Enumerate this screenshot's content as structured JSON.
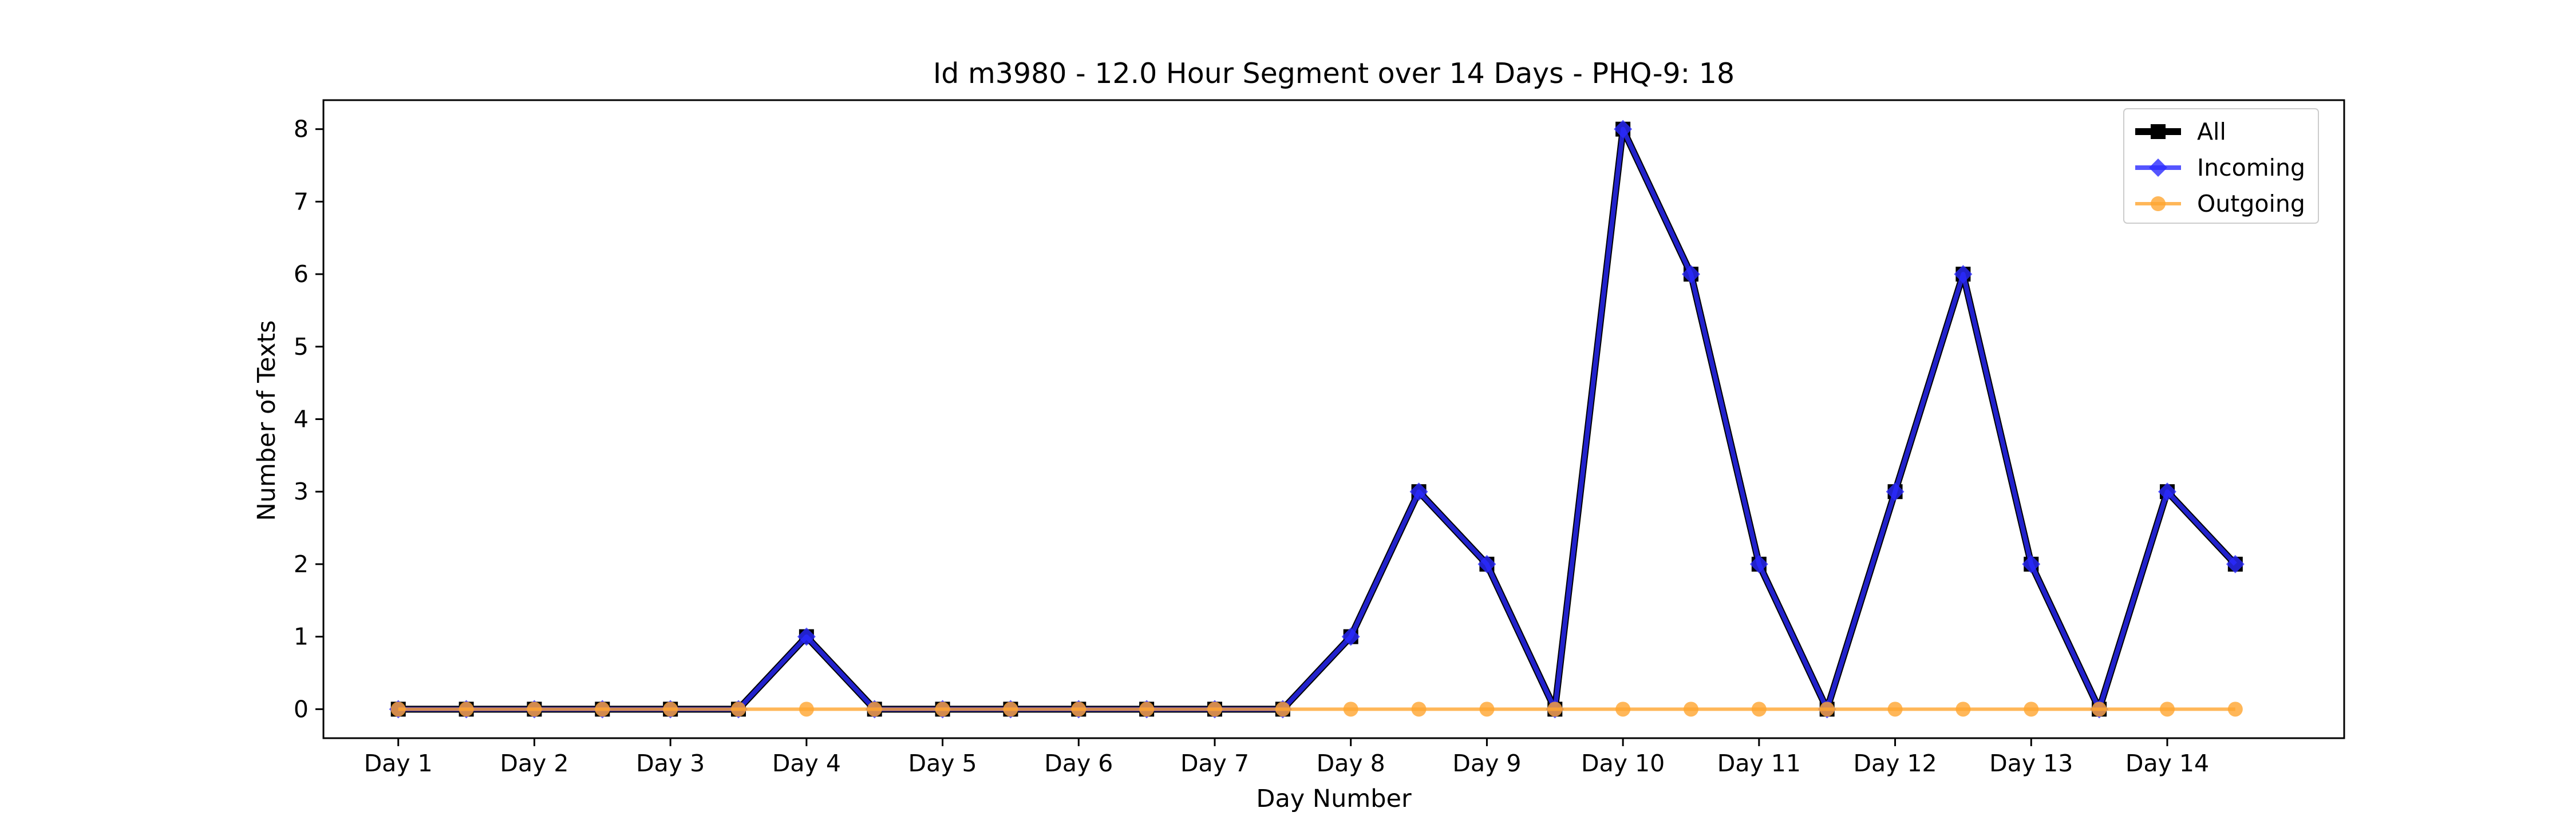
{
  "chart_data": {
    "type": "line",
    "title": "Id m3980 - 12.0 Hour Segment over 14 Days - PHQ-9: 18",
    "xlabel": "Day Number",
    "ylabel": "Number of Texts",
    "categories": [
      "Day 1",
      "Day 2",
      "Day 3",
      "Day 4",
      "Day 5",
      "Day 6",
      "Day 7",
      "Day 8",
      "Day 9",
      "Day 10",
      "Day 11",
      "Day 12",
      "Day 13",
      "Day 14"
    ],
    "x": [
      1,
      1.5,
      2,
      2.5,
      3,
      3.5,
      4,
      4.5,
      5,
      5.5,
      6,
      6.5,
      7,
      7.5,
      8,
      8.5,
      9,
      9.5,
      10,
      10.5,
      11,
      11.5,
      12,
      12.5,
      13,
      13.5,
      14,
      14.5
    ],
    "yticks": [
      0,
      1,
      2,
      3,
      4,
      5,
      6,
      7,
      8
    ],
    "ylim": [
      -0.4,
      8.4
    ],
    "xlim": [
      0.45,
      15.3
    ],
    "grid": false,
    "legend_position": "top-right",
    "series": [
      {
        "name": "All",
        "color": "#000000",
        "marker": "square",
        "values": [
          0,
          0,
          0,
          0,
          0,
          0,
          1,
          0,
          0,
          0,
          0,
          0,
          0,
          0,
          1,
          3,
          2,
          0,
          8,
          6,
          2,
          0,
          3,
          6,
          2,
          0,
          3,
          2
        ]
      },
      {
        "name": "Incoming",
        "color": "#2b2bff",
        "marker": "diamond",
        "values": [
          0,
          0,
          0,
          0,
          0,
          0,
          1,
          0,
          0,
          0,
          0,
          0,
          0,
          0,
          1,
          3,
          2,
          0,
          8,
          6,
          2,
          0,
          3,
          6,
          2,
          0,
          3,
          2
        ]
      },
      {
        "name": "Outgoing",
        "color": "#ffa530",
        "marker": "circle",
        "values": [
          0,
          0,
          0,
          0,
          0,
          0,
          0,
          0,
          0,
          0,
          0,
          0,
          0,
          0,
          0,
          0,
          0,
          0,
          0,
          0,
          0,
          0,
          0,
          0,
          0,
          0,
          0,
          0
        ]
      }
    ]
  }
}
